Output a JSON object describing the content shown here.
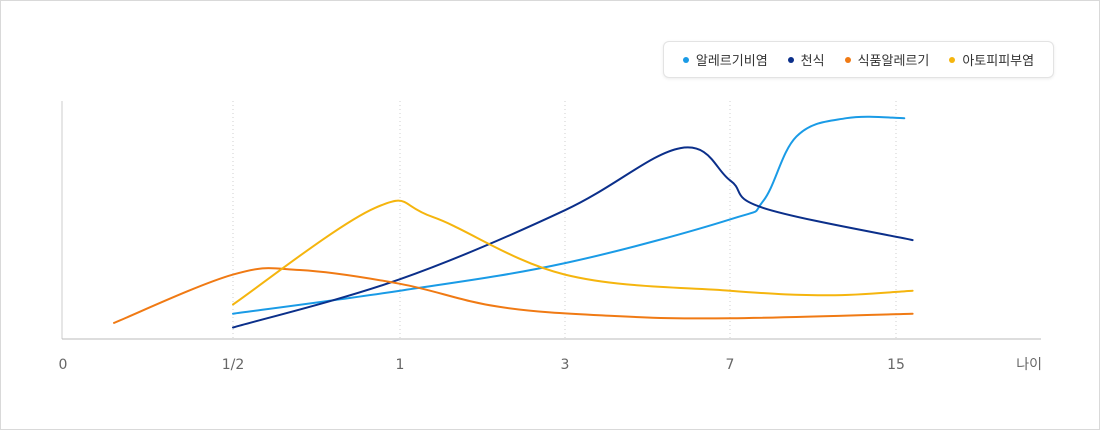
{
  "chart_data": {
    "type": "line",
    "xlabel": "나이",
    "ylabel": "",
    "title": "",
    "x_ticks": [
      "0",
      "1/2",
      "1",
      "3",
      "7",
      "15"
    ],
    "x_scale": "categorical-age",
    "grid": "vertical-dotted",
    "legend_position": "top-right",
    "ylim": [
      0,
      100
    ],
    "series": [
      {
        "name": "알레르기비염",
        "color": "#1a9be6",
        "points": [
          [
            1,
            11
          ],
          [
            2,
            21
          ],
          [
            3,
            33
          ],
          [
            4,
            52
          ],
          [
            4.2,
            60
          ],
          [
            4.4,
            88
          ],
          [
            4.7,
            96
          ],
          [
            5.05,
            96
          ]
        ]
      },
      {
        "name": "천식",
        "color": "#0b2f8a",
        "points": [
          [
            1,
            5
          ],
          [
            2,
            26
          ],
          [
            3,
            56
          ],
          [
            3.7,
            83
          ],
          [
            4,
            69
          ],
          [
            4.2,
            57
          ],
          [
            5.1,
            43
          ]
        ]
      },
      {
        "name": "식품알레르기",
        "color": "#f07a14",
        "points": [
          [
            0.3,
            7
          ],
          [
            1,
            28
          ],
          [
            1.4,
            30
          ],
          [
            2,
            24
          ],
          [
            2.6,
            14
          ],
          [
            3.3,
            10
          ],
          [
            4,
            9
          ],
          [
            5.1,
            11
          ]
        ]
      },
      {
        "name": "아토피피부염",
        "color": "#f5b50e",
        "points": [
          [
            1,
            15
          ],
          [
            1.85,
            57
          ],
          [
            2.2,
            53
          ],
          [
            3,
            28
          ],
          [
            4,
            21
          ],
          [
            4.6,
            19
          ],
          [
            5.1,
            21
          ]
        ]
      }
    ]
  }
}
